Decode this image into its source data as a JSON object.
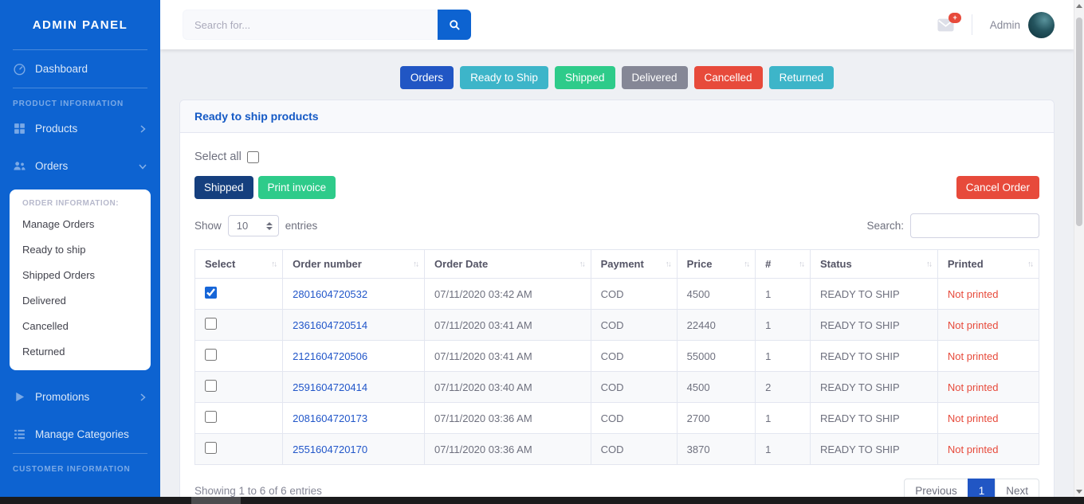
{
  "sidebar": {
    "brand": "ADMIN PANEL",
    "dashboard": "Dashboard",
    "product_info_heading": "PRODUCT INFORMATION",
    "products": "Products",
    "orders": "Orders",
    "submenu": {
      "heading": "ORDER INFORMATION:",
      "items": [
        "Manage Orders",
        "Ready to ship",
        "Shipped Orders",
        "Delivered",
        "Cancelled",
        "Returned"
      ]
    },
    "promotions": "Promotions",
    "manage_categories": "Manage Categories",
    "customer_info_heading": "CUSTOMER INFORMATION"
  },
  "topbar": {
    "search_placeholder": "Search for...",
    "notification_badge": "+",
    "user_name": "Admin"
  },
  "filters": [
    {
      "label": "Orders",
      "color": "#2156c4"
    },
    {
      "label": "Ready to Ship",
      "color": "#3db5c9"
    },
    {
      "label": "Shipped",
      "color": "#2ecb8a"
    },
    {
      "label": "Delivered",
      "color": "#858796"
    },
    {
      "label": "Cancelled",
      "color": "#e74a3b"
    },
    {
      "label": "Returned",
      "color": "#3db5c9"
    }
  ],
  "card": {
    "title": "Ready to ship products",
    "select_all_label": "Select all",
    "buttons": {
      "shipped": "Shipped",
      "print_invoice": "Print invoice",
      "cancel_order": "Cancel Order"
    },
    "show_label": "Show",
    "page_length": "10",
    "entries_label": "entries",
    "search_label": "Search:",
    "table": {
      "columns": [
        "Select",
        "Order number",
        "Order Date",
        "Payment",
        "Price",
        "#",
        "Status",
        "Printed"
      ],
      "rows": [
        {
          "checked": true,
          "order_number": "2801604720532",
          "order_date": "07/11/2020 03:42 AM",
          "payment": "COD",
          "price": "4500",
          "qty": "1",
          "status": "READY TO SHIP",
          "printed": "Not printed"
        },
        {
          "checked": false,
          "order_number": "2361604720514",
          "order_date": "07/11/2020 03:41 AM",
          "payment": "COD",
          "price": "22440",
          "qty": "1",
          "status": "READY TO SHIP",
          "printed": "Not printed"
        },
        {
          "checked": false,
          "order_number": "2121604720506",
          "order_date": "07/11/2020 03:41 AM",
          "payment": "COD",
          "price": "55000",
          "qty": "1",
          "status": "READY TO SHIP",
          "printed": "Not printed"
        },
        {
          "checked": false,
          "order_number": "2591604720414",
          "order_date": "07/11/2020 03:40 AM",
          "payment": "COD",
          "price": "4500",
          "qty": "2",
          "status": "READY TO SHIP",
          "printed": "Not printed"
        },
        {
          "checked": false,
          "order_number": "2081604720173",
          "order_date": "07/11/2020 03:36 AM",
          "payment": "COD",
          "price": "2700",
          "qty": "1",
          "status": "READY TO SHIP",
          "printed": "Not printed"
        },
        {
          "checked": false,
          "order_number": "2551604720170",
          "order_date": "07/11/2020 03:36 AM",
          "payment": "COD",
          "price": "3870",
          "qty": "1",
          "status": "READY TO SHIP",
          "printed": "Not printed"
        }
      ]
    },
    "footer": {
      "showing": "Showing 1 to 6 of 6 entries",
      "previous": "Previous",
      "page": "1",
      "next": "Next"
    }
  },
  "colors": {
    "sidebar_blue": "#0d63d1",
    "primary_blue": "#2156c4",
    "navy_button": "#153f7e",
    "success_green": "#2ecb8a",
    "info_teal": "#3db5c9",
    "secondary_gray": "#858796",
    "danger_red": "#e74a3b",
    "link_blue": "#2156c9"
  }
}
